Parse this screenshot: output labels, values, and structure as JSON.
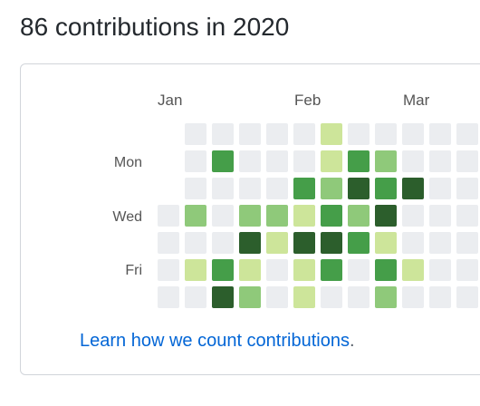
{
  "header": {
    "title": "86 contributions in 2020"
  },
  "calendar": {
    "months": [
      "Jan",
      "Feb",
      "Mar"
    ],
    "days": [
      "Mon",
      "Wed",
      "Fri"
    ],
    "level_colors": [
      "#ebedf0",
      "#cde59a",
      "#8fc97a",
      "#459e49",
      "#2c5e2c"
    ],
    "weeks": [
      [
        null,
        null,
        null,
        0,
        0,
        0,
        0
      ],
      [
        0,
        0,
        0,
        2,
        0,
        1,
        0
      ],
      [
        0,
        3,
        0,
        0,
        0,
        3,
        4
      ],
      [
        0,
        0,
        0,
        2,
        4,
        1,
        2
      ],
      [
        0,
        0,
        0,
        2,
        1,
        0,
        0
      ],
      [
        0,
        0,
        3,
        1,
        4,
        1,
        1
      ],
      [
        1,
        1,
        2,
        3,
        4,
        3,
        0
      ],
      [
        0,
        3,
        4,
        2,
        3,
        0,
        0
      ],
      [
        0,
        2,
        3,
        4,
        1,
        3,
        2
      ],
      [
        0,
        0,
        4,
        0,
        0,
        1,
        0
      ],
      [
        0,
        0,
        0,
        0,
        0,
        0,
        0
      ],
      [
        0,
        0,
        0,
        0,
        0,
        0,
        0
      ]
    ]
  },
  "footer": {
    "link": "Learn how we count contributions",
    "suffix": "."
  }
}
